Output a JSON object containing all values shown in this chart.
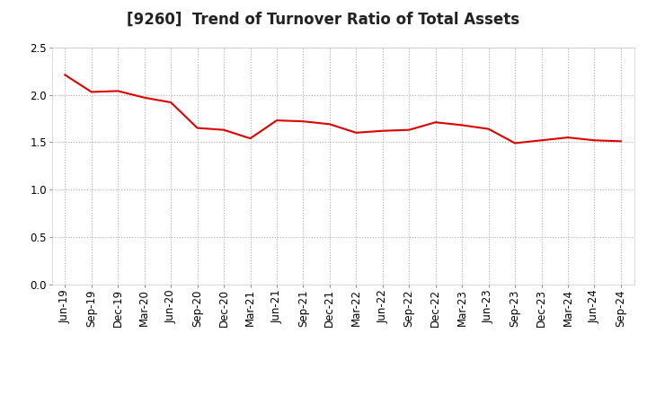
{
  "title": "[9260]  Trend of Turnover Ratio of Total Assets",
  "x_labels": [
    "Jun-19",
    "Sep-19",
    "Dec-19",
    "Mar-20",
    "Jun-20",
    "Sep-20",
    "Dec-20",
    "Mar-21",
    "Jun-21",
    "Sep-21",
    "Dec-21",
    "Mar-22",
    "Jun-22",
    "Sep-22",
    "Dec-22",
    "Mar-23",
    "Jun-23",
    "Sep-23",
    "Dec-23",
    "Mar-24",
    "Jun-24",
    "Sep-24"
  ],
  "values": [
    2.21,
    2.03,
    2.04,
    1.97,
    1.92,
    1.65,
    1.63,
    1.54,
    1.73,
    1.72,
    1.69,
    1.6,
    1.62,
    1.63,
    1.71,
    1.68,
    1.64,
    1.49,
    1.52,
    1.55,
    1.52,
    1.51
  ],
  "line_color": "#dd0000",
  "background_color": "#ffffff",
  "plot_bg_color": "#ffffff",
  "ylim": [
    0.0,
    2.5
  ],
  "yticks": [
    0.0,
    0.5,
    1.0,
    1.5,
    2.0,
    2.5
  ],
  "grid_color": "#aaaaaa",
  "title_fontsize": 12,
  "tick_fontsize": 8.5,
  "line_width": 1.5
}
